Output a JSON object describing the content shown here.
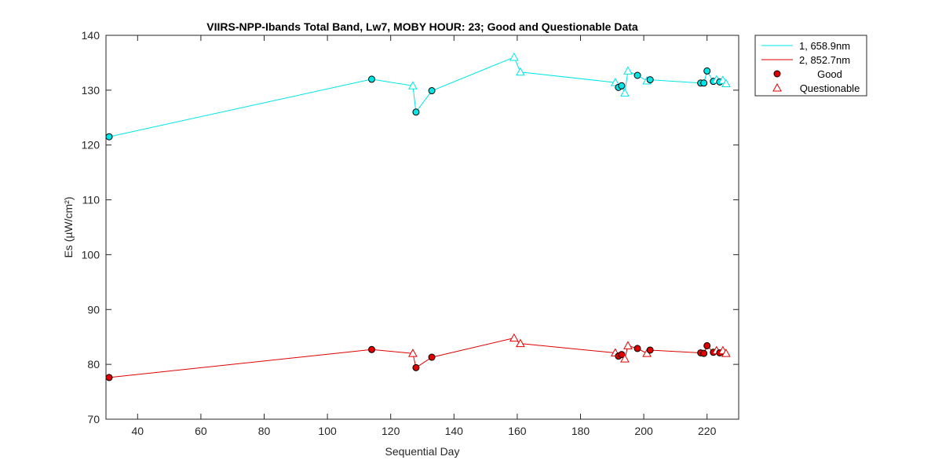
{
  "chart_data": {
    "type": "line",
    "title": "VIIRS-NPP-Ibands Total Band,  Lw7, MOBY HOUR: 23;  Good and Questionable Data",
    "xlabel": "Sequential Day",
    "ylabel": "Es (µW/cm²)",
    "xlim": [
      30,
      230
    ],
    "ylim": [
      70,
      140
    ],
    "xticks": [
      40,
      60,
      80,
      100,
      120,
      140,
      160,
      180,
      200,
      220
    ],
    "yticks": [
      70,
      80,
      90,
      100,
      110,
      120,
      130,
      140
    ],
    "xtick_labels": [
      "40",
      "60",
      "80",
      "100",
      "120",
      "140",
      "160",
      "180",
      "200",
      "220"
    ],
    "ytick_labels": [
      "70",
      "80",
      "90",
      "100",
      "110",
      "120",
      "130",
      "140"
    ],
    "series": [
      {
        "name": "1, 658.9nm",
        "color": "#00e5e5",
        "points": [
          {
            "x": 31,
            "y": 121.5,
            "q": "good"
          },
          {
            "x": 114,
            "y": 132.0,
            "q": "good"
          },
          {
            "x": 127,
            "y": 130.8,
            "q": "questionable"
          },
          {
            "x": 128,
            "y": 126.0,
            "q": "good"
          },
          {
            "x": 133,
            "y": 129.9,
            "q": "good"
          },
          {
            "x": 159,
            "y": 136.0,
            "q": "questionable"
          },
          {
            "x": 161,
            "y": 133.3,
            "q": "questionable"
          },
          {
            "x": 191,
            "y": 131.4,
            "q": "questionable"
          },
          {
            "x": 192,
            "y": 130.5,
            "q": "good"
          },
          {
            "x": 193,
            "y": 130.8,
            "q": "good"
          },
          {
            "x": 194,
            "y": 129.5,
            "q": "questionable"
          },
          {
            "x": 195,
            "y": 133.5,
            "q": "questionable"
          },
          {
            "x": 198,
            "y": 132.7,
            "q": "good"
          },
          {
            "x": 201,
            "y": 131.7,
            "q": "questionable"
          },
          {
            "x": 202,
            "y": 131.9,
            "q": "good"
          },
          {
            "x": 218,
            "y": 131.3,
            "q": "good"
          },
          {
            "x": 219,
            "y": 131.3,
            "q": "good"
          },
          {
            "x": 220,
            "y": 133.5,
            "q": "good"
          },
          {
            "x": 222,
            "y": 131.6,
            "q": "good"
          },
          {
            "x": 223,
            "y": 131.9,
            "q": "questionable"
          },
          {
            "x": 224,
            "y": 131.5,
            "q": "good"
          },
          {
            "x": 225,
            "y": 131.8,
            "q": "questionable"
          },
          {
            "x": 226,
            "y": 131.2,
            "q": "questionable"
          }
        ]
      },
      {
        "name": "2, 852.7nm",
        "color": "#e00000",
        "points": [
          {
            "x": 31,
            "y": 77.6,
            "q": "good"
          },
          {
            "x": 114,
            "y": 82.7,
            "q": "good"
          },
          {
            "x": 127,
            "y": 82.0,
            "q": "questionable"
          },
          {
            "x": 128,
            "y": 79.4,
            "q": "good"
          },
          {
            "x": 133,
            "y": 81.3,
            "q": "good"
          },
          {
            "x": 159,
            "y": 84.8,
            "q": "questionable"
          },
          {
            "x": 161,
            "y": 83.8,
            "q": "questionable"
          },
          {
            "x": 191,
            "y": 82.1,
            "q": "questionable"
          },
          {
            "x": 192,
            "y": 81.5,
            "q": "good"
          },
          {
            "x": 193,
            "y": 81.8,
            "q": "good"
          },
          {
            "x": 194,
            "y": 81.0,
            "q": "questionable"
          },
          {
            "x": 195,
            "y": 83.4,
            "q": "questionable"
          },
          {
            "x": 198,
            "y": 82.9,
            "q": "good"
          },
          {
            "x": 201,
            "y": 82.0,
            "q": "questionable"
          },
          {
            "x": 202,
            "y": 82.6,
            "q": "good"
          },
          {
            "x": 218,
            "y": 82.1,
            "q": "good"
          },
          {
            "x": 219,
            "y": 82.0,
            "q": "good"
          },
          {
            "x": 220,
            "y": 83.4,
            "q": "good"
          },
          {
            "x": 222,
            "y": 82.2,
            "q": "good"
          },
          {
            "x": 223,
            "y": 82.5,
            "q": "questionable"
          },
          {
            "x": 224,
            "y": 82.1,
            "q": "good"
          },
          {
            "x": 225,
            "y": 82.5,
            "q": "questionable"
          },
          {
            "x": 226,
            "y": 82.0,
            "q": "questionable"
          }
        ]
      }
    ],
    "legend": {
      "location": "outside-top-right",
      "entries": [
        {
          "label": "1, 658.9nm",
          "kind": "line",
          "color": "#00e5e5"
        },
        {
          "label": "2, 852.7nm",
          "kind": "line",
          "color": "#e00000"
        },
        {
          "label": "Good",
          "kind": "circle",
          "color": "#e00000"
        },
        {
          "label": "Questionable",
          "kind": "triangle",
          "color": "#e00000"
        }
      ]
    }
  }
}
